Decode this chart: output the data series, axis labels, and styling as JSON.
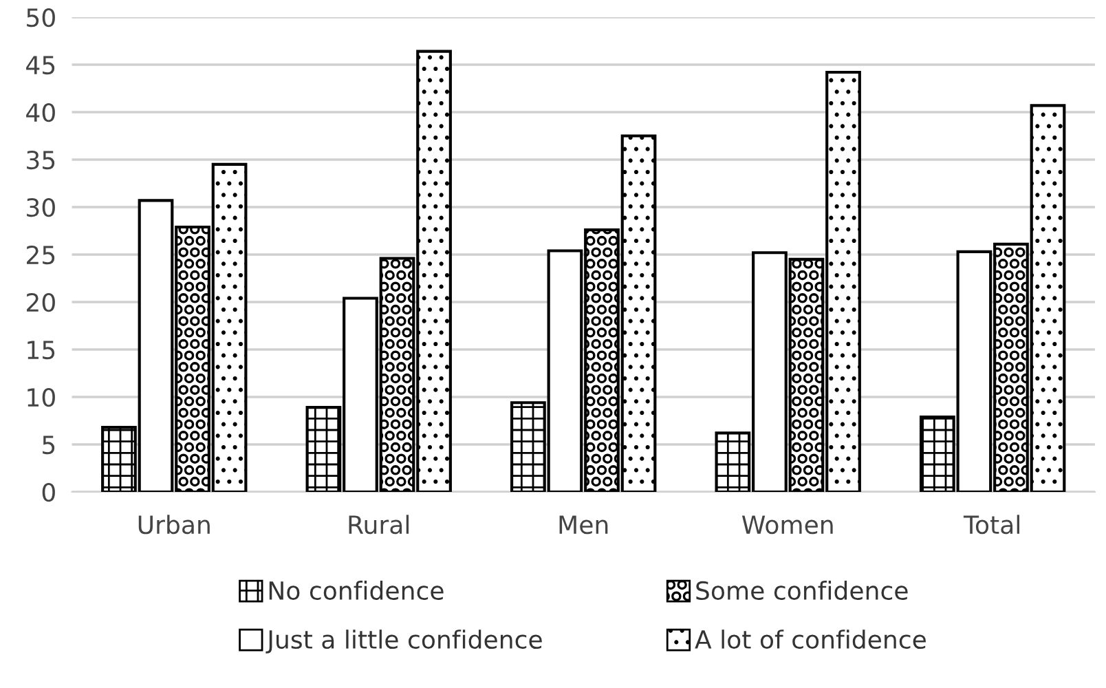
{
  "chart_data": {
    "type": "bar",
    "categories": [
      "Urban",
      "Rural",
      "Men",
      "Women",
      "Total"
    ],
    "series": [
      {
        "name": "No confidence",
        "color": "#000000",
        "values": [
          6.8,
          8.9,
          9.4,
          6.2,
          7.9
        ]
      },
      {
        "name": "Just a little confidence",
        "color": "#000000",
        "values": [
          30.7,
          20.4,
          25.4,
          25.2,
          25.3
        ]
      },
      {
        "name": "Some confidence",
        "color": "#000000",
        "values": [
          27.9,
          24.6,
          27.6,
          24.5,
          26.1
        ]
      },
      {
        "name": "A lot of confidence",
        "color": "#000000",
        "values": [
          34.5,
          46.4,
          37.5,
          44.2,
          40.7
        ]
      }
    ],
    "ylim": [
      0,
      50
    ],
    "yticks": [
      0,
      5,
      10,
      15,
      20,
      25,
      30,
      35,
      40,
      45,
      50
    ],
    "grid": "y",
    "legend": "bottom"
  }
}
